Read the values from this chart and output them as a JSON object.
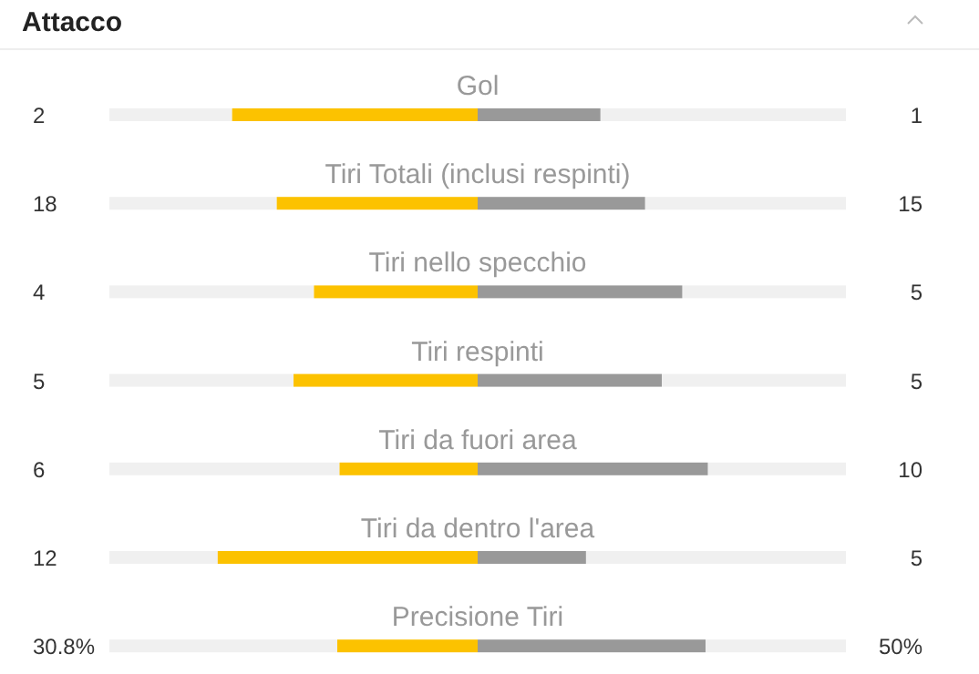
{
  "chart_data": {
    "type": "other",
    "title": "Attacco",
    "categories": [
      "Gol",
      "Tiri Totali (inclusi respinti)",
      "Tiri nello specchio",
      "Tiri respinti",
      "Tiri da fuori area",
      "Tiri da dentro l'area",
      "Precisione Tiri"
    ],
    "series": [
      {
        "color": "#fcc200",
        "values": [
          2,
          18,
          4,
          5,
          6,
          12,
          30.8
        ],
        "value_labels": [
          "2",
          "18",
          "4",
          "5",
          "6",
          "12",
          "30.8%"
        ]
      },
      {
        "color": "#999999",
        "values": [
          1,
          15,
          5,
          5,
          10,
          5,
          50
        ],
        "value_labels": [
          "1",
          "15",
          "5",
          "5",
          "10",
          "5",
          "50%"
        ]
      }
    ]
  }
}
